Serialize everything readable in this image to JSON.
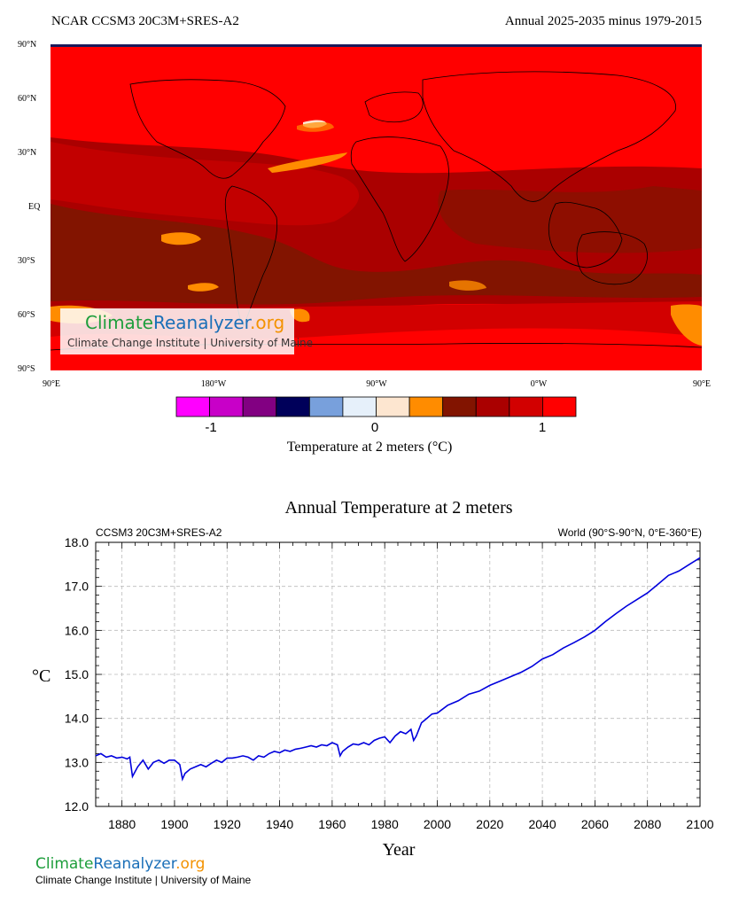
{
  "map": {
    "title_left": "NCAR CCSM3 20C3M+SRES-A2",
    "title_right": "Annual 2025-2035 minus 1979-2015",
    "lat_labels": [
      "90°N",
      "60°N",
      "30°N",
      "EQ",
      "30°S",
      "60°S",
      "90°S"
    ],
    "lon_labels": [
      "90°E",
      "180°W",
      "90°W",
      "0°W",
      "90°E"
    ],
    "colorbar_colors": [
      "#ff00ff",
      "#c800c8",
      "#820082",
      "#00005a",
      "#78a0dc",
      "#e6f0fa",
      "#fde6d0",
      "#ff8c00",
      "#821400",
      "#aa0000",
      "#d20000",
      "#ff0000"
    ],
    "colorbar_ticks": [
      "-1",
      "0",
      "1"
    ],
    "scale_label": "Temperature at 2 meters (°C)",
    "watermark_title_a": "Climate",
    "watermark_title_b": "Reanalyzer",
    "watermark_title_c": ".org",
    "watermark_subtitle": "Climate Change Institute | University of Maine"
  },
  "timeseries": {
    "title": "Annual Temperature at 2 meters",
    "subtitle_left": "CCSM3 20C3M+SRES-A2",
    "subtitle_right": "World (90°S-90°N, 0°E-360°E)",
    "ylabel": "°C",
    "xlabel": "Year"
  },
  "footer": {
    "title_a": "Climate",
    "title_b": "Reanalyzer",
    "title_c": ".org",
    "subtitle": "Climate Change Institute | University of Maine"
  },
  "colors": {
    "line": "#0000dd",
    "green": "#1e9e3c",
    "blue": "#1a6fb8",
    "orange": "#f39200"
  },
  "chart_data": {
    "type": "line",
    "title": "Annual Temperature at 2 meters",
    "xlabel": "Year",
    "ylabel": "°C",
    "xlim": [
      1870,
      2100
    ],
    "ylim": [
      12.0,
      18.0
    ],
    "xticks": [
      1880,
      1900,
      1920,
      1940,
      1960,
      1980,
      2000,
      2020,
      2040,
      2060,
      2080,
      2100
    ],
    "yticks": [
      12.0,
      13.0,
      14.0,
      15.0,
      16.0,
      17.0,
      18.0
    ],
    "grid": true,
    "series": [
      {
        "x": [
          1870,
          1872,
          1874,
          1876,
          1878,
          1880,
          1882,
          1883,
          1884,
          1886,
          1888,
          1890,
          1892,
          1894,
          1896,
          1898,
          1900,
          1902,
          1903,
          1904,
          1906,
          1908,
          1910,
          1912,
          1914,
          1916,
          1918,
          1920,
          1922,
          1924,
          1926,
          1928,
          1930,
          1932,
          1934,
          1936,
          1938,
          1940,
          1942,
          1944,
          1946,
          1948,
          1950,
          1952,
          1954,
          1956,
          1958,
          1960,
          1962,
          1963,
          1964,
          1966,
          1968,
          1970,
          1972,
          1974,
          1976,
          1978,
          1980,
          1982,
          1984,
          1986,
          1988,
          1990,
          1991,
          1992,
          1994,
          1996,
          1998,
          2000,
          2004,
          2008,
          2012,
          2016,
          2020,
          2024,
          2028,
          2032,
          2036,
          2040,
          2044,
          2048,
          2052,
          2056,
          2060,
          2064,
          2068,
          2072,
          2076,
          2080,
          2084,
          2088,
          2092,
          2096,
          2100
        ],
        "values": [
          13.15,
          13.2,
          13.12,
          13.15,
          13.1,
          13.12,
          13.08,
          13.12,
          12.68,
          12.9,
          13.05,
          12.85,
          13.0,
          13.05,
          12.98,
          13.05,
          13.05,
          12.95,
          12.62,
          12.75,
          12.85,
          12.9,
          12.95,
          12.9,
          12.98,
          13.05,
          13.0,
          13.1,
          13.1,
          13.12,
          13.15,
          13.12,
          13.05,
          13.15,
          13.12,
          13.2,
          13.25,
          13.22,
          13.28,
          13.25,
          13.3,
          13.32,
          13.35,
          13.38,
          13.35,
          13.4,
          13.38,
          13.45,
          13.4,
          13.15,
          13.25,
          13.35,
          13.42,
          13.4,
          13.45,
          13.4,
          13.5,
          13.55,
          13.58,
          13.45,
          13.6,
          13.7,
          13.65,
          13.75,
          13.5,
          13.6,
          13.9,
          14.0,
          14.1,
          14.12,
          14.3,
          14.4,
          14.55,
          14.62,
          14.75,
          14.85,
          14.95,
          15.05,
          15.18,
          15.35,
          15.45,
          15.6,
          15.72,
          15.85,
          16.0,
          16.2,
          16.38,
          16.55,
          16.7,
          16.85,
          17.05,
          17.25,
          17.35,
          17.5,
          17.65
        ]
      }
    ]
  }
}
